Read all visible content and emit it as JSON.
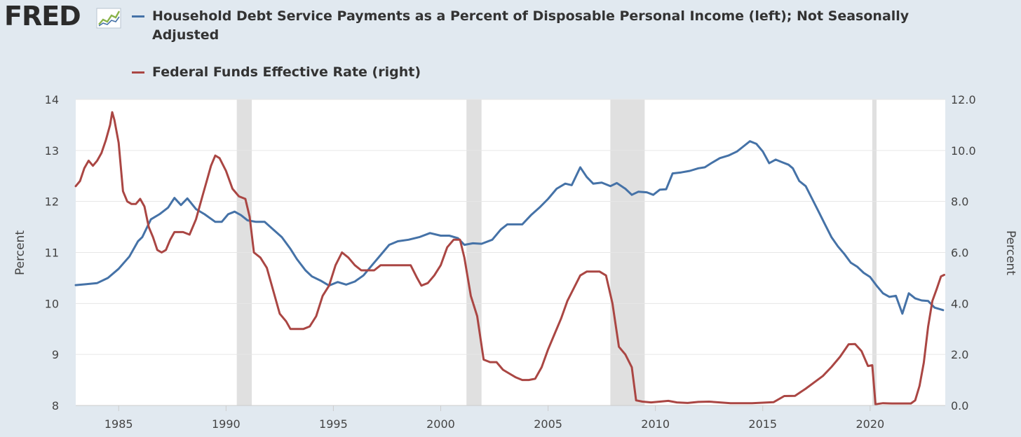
{
  "logo": {
    "text": "FRED"
  },
  "legend": [
    {
      "label": "Household Debt Service Payments as a Percent of Disposable Personal Income (left); Not Seasonally Adjusted",
      "color": "#4572a7"
    },
    {
      "label": "Federal Funds Effective Rate (right)",
      "color": "#aa4643"
    }
  ],
  "chart_data": {
    "type": "line",
    "xlim": [
      1983.0,
      2023.5
    ],
    "x_ticks": [
      "1985",
      "1990",
      "1995",
      "2000",
      "2005",
      "2010",
      "2015",
      "2020"
    ],
    "y_left": {
      "label": "Percent",
      "range": [
        8,
        14
      ],
      "ticks": [
        "8",
        "9",
        "10",
        "11",
        "12",
        "13",
        "14"
      ]
    },
    "y_right": {
      "label": "Percent",
      "range": [
        0,
        12
      ],
      "ticks": [
        "0.0",
        "2.0",
        "4.0",
        "6.0",
        "8.0",
        "10.0",
        "12.0"
      ]
    },
    "grid": true,
    "recessions": [
      [
        1990.5,
        1991.2
      ],
      [
        2001.2,
        2001.9
      ],
      [
        2007.9,
        2009.5
      ],
      [
        2020.1,
        2020.3
      ]
    ],
    "series": [
      {
        "axis": "left",
        "color": "#4572a7",
        "points": [
          [
            1983.0,
            10.36
          ],
          [
            1983.5,
            10.38
          ],
          [
            1984.0,
            10.4
          ],
          [
            1984.5,
            10.5
          ],
          [
            1985.0,
            10.68
          ],
          [
            1985.5,
            10.92
          ],
          [
            1985.9,
            11.22
          ],
          [
            1986.1,
            11.3
          ],
          [
            1986.5,
            11.65
          ],
          [
            1986.9,
            11.75
          ],
          [
            1987.3,
            11.88
          ],
          [
            1987.6,
            12.07
          ],
          [
            1987.9,
            11.93
          ],
          [
            1988.2,
            12.06
          ],
          [
            1988.6,
            11.85
          ],
          [
            1989.0,
            11.75
          ],
          [
            1989.5,
            11.6
          ],
          [
            1989.8,
            11.6
          ],
          [
            1990.1,
            11.75
          ],
          [
            1990.4,
            11.8
          ],
          [
            1990.7,
            11.73
          ],
          [
            1991.0,
            11.63
          ],
          [
            1991.4,
            11.6
          ],
          [
            1991.8,
            11.6
          ],
          [
            1992.2,
            11.45
          ],
          [
            1992.6,
            11.3
          ],
          [
            1993.0,
            11.07
          ],
          [
            1993.3,
            10.87
          ],
          [
            1993.7,
            10.65
          ],
          [
            1994.0,
            10.53
          ],
          [
            1994.4,
            10.45
          ],
          [
            1994.8,
            10.35
          ],
          [
            1995.2,
            10.42
          ],
          [
            1995.6,
            10.37
          ],
          [
            1996.0,
            10.43
          ],
          [
            1996.4,
            10.55
          ],
          [
            1996.8,
            10.75
          ],
          [
            1997.2,
            10.95
          ],
          [
            1997.6,
            11.15
          ],
          [
            1998.0,
            11.22
          ],
          [
            1998.5,
            11.25
          ],
          [
            1999.0,
            11.3
          ],
          [
            1999.5,
            11.38
          ],
          [
            2000.0,
            11.33
          ],
          [
            2000.4,
            11.33
          ],
          [
            2000.8,
            11.28
          ],
          [
            2001.1,
            11.15
          ],
          [
            2001.5,
            11.18
          ],
          [
            2001.9,
            11.17
          ],
          [
            2002.4,
            11.25
          ],
          [
            2002.8,
            11.45
          ],
          [
            2003.1,
            11.55
          ],
          [
            2003.5,
            11.55
          ],
          [
            2003.8,
            11.55
          ],
          [
            2004.2,
            11.73
          ],
          [
            2004.6,
            11.88
          ],
          [
            2005.0,
            12.05
          ],
          [
            2005.4,
            12.25
          ],
          [
            2005.8,
            12.35
          ],
          [
            2006.1,
            12.32
          ],
          [
            2006.5,
            12.67
          ],
          [
            2006.8,
            12.48
          ],
          [
            2007.1,
            12.35
          ],
          [
            2007.5,
            12.37
          ],
          [
            2007.9,
            12.3
          ],
          [
            2008.2,
            12.36
          ],
          [
            2008.6,
            12.25
          ],
          [
            2008.9,
            12.13
          ],
          [
            2009.2,
            12.19
          ],
          [
            2009.6,
            12.18
          ],
          [
            2009.9,
            12.13
          ],
          [
            2010.2,
            12.23
          ],
          [
            2010.5,
            12.24
          ],
          [
            2010.8,
            12.55
          ],
          [
            2011.2,
            12.57
          ],
          [
            2011.6,
            12.6
          ],
          [
            2012.0,
            12.65
          ],
          [
            2012.3,
            12.67
          ],
          [
            2012.6,
            12.75
          ],
          [
            2013.0,
            12.85
          ],
          [
            2013.4,
            12.9
          ],
          [
            2013.8,
            12.98
          ],
          [
            2014.1,
            13.08
          ],
          [
            2014.4,
            13.18
          ],
          [
            2014.7,
            13.13
          ],
          [
            2015.0,
            12.98
          ],
          [
            2015.3,
            12.75
          ],
          [
            2015.6,
            12.82
          ],
          [
            2015.9,
            12.77
          ],
          [
            2016.2,
            12.72
          ],
          [
            2016.4,
            12.65
          ],
          [
            2016.7,
            12.4
          ],
          [
            2017.0,
            12.3
          ],
          [
            2017.3,
            12.05
          ],
          [
            2017.6,
            11.8
          ],
          [
            2017.9,
            11.55
          ],
          [
            2018.2,
            11.3
          ],
          [
            2018.5,
            11.12
          ],
          [
            2018.8,
            10.97
          ],
          [
            2019.1,
            10.8
          ],
          [
            2019.4,
            10.72
          ],
          [
            2019.7,
            10.6
          ],
          [
            2020.0,
            10.52
          ],
          [
            2020.3,
            10.35
          ],
          [
            2020.6,
            10.2
          ],
          [
            2020.9,
            10.13
          ],
          [
            2021.2,
            10.15
          ],
          [
            2021.5,
            9.8
          ],
          [
            2021.8,
            10.2
          ],
          [
            2022.1,
            10.1
          ],
          [
            2022.4,
            10.06
          ],
          [
            2022.7,
            10.05
          ],
          [
            2023.0,
            9.92
          ],
          [
            2023.4,
            9.87
          ]
        ]
      },
      {
        "axis": "right",
        "color": "#aa4643",
        "points": [
          [
            1983.0,
            8.6
          ],
          [
            1983.2,
            8.8
          ],
          [
            1983.4,
            9.3
          ],
          [
            1983.6,
            9.6
          ],
          [
            1983.8,
            9.4
          ],
          [
            1984.0,
            9.6
          ],
          [
            1984.2,
            9.9
          ],
          [
            1984.4,
            10.4
          ],
          [
            1984.6,
            11.0
          ],
          [
            1984.7,
            11.5
          ],
          [
            1984.8,
            11.2
          ],
          [
            1985.0,
            10.3
          ],
          [
            1985.2,
            8.4
          ],
          [
            1985.4,
            8.0
          ],
          [
            1985.6,
            7.9
          ],
          [
            1985.8,
            7.9
          ],
          [
            1986.0,
            8.1
          ],
          [
            1986.2,
            7.8
          ],
          [
            1986.4,
            7.0
          ],
          [
            1986.6,
            6.6
          ],
          [
            1986.8,
            6.1
          ],
          [
            1987.0,
            6.0
          ],
          [
            1987.2,
            6.1
          ],
          [
            1987.4,
            6.5
          ],
          [
            1987.6,
            6.8
          ],
          [
            1987.8,
            6.8
          ],
          [
            1988.0,
            6.8
          ],
          [
            1988.3,
            6.7
          ],
          [
            1988.6,
            7.3
          ],
          [
            1988.9,
            8.2
          ],
          [
            1989.1,
            8.8
          ],
          [
            1989.3,
            9.4
          ],
          [
            1989.5,
            9.8
          ],
          [
            1989.7,
            9.7
          ],
          [
            1990.0,
            9.2
          ],
          [
            1990.3,
            8.5
          ],
          [
            1990.6,
            8.2
          ],
          [
            1990.9,
            8.1
          ],
          [
            1991.1,
            7.4
          ],
          [
            1991.3,
            6.0
          ],
          [
            1991.6,
            5.8
          ],
          [
            1991.9,
            5.4
          ],
          [
            1992.2,
            4.5
          ],
          [
            1992.5,
            3.6
          ],
          [
            1992.8,
            3.3
          ],
          [
            1993.0,
            3.0
          ],
          [
            1993.3,
            3.0
          ],
          [
            1993.6,
            3.0
          ],
          [
            1993.9,
            3.1
          ],
          [
            1994.2,
            3.5
          ],
          [
            1994.5,
            4.3
          ],
          [
            1994.8,
            4.7
          ],
          [
            1995.1,
            5.5
          ],
          [
            1995.4,
            6.0
          ],
          [
            1995.7,
            5.8
          ],
          [
            1996.0,
            5.5
          ],
          [
            1996.3,
            5.3
          ],
          [
            1996.6,
            5.3
          ],
          [
            1996.9,
            5.3
          ],
          [
            1997.2,
            5.5
          ],
          [
            1997.5,
            5.5
          ],
          [
            1997.8,
            5.5
          ],
          [
            1998.0,
            5.5
          ],
          [
            1998.3,
            5.5
          ],
          [
            1998.6,
            5.5
          ],
          [
            1998.9,
            5.0
          ],
          [
            1999.1,
            4.7
          ],
          [
            1999.4,
            4.8
          ],
          [
            1999.7,
            5.1
          ],
          [
            2000.0,
            5.5
          ],
          [
            2000.3,
            6.2
          ],
          [
            2000.6,
            6.5
          ],
          [
            2000.9,
            6.5
          ],
          [
            2001.1,
            5.8
          ],
          [
            2001.4,
            4.3
          ],
          [
            2001.7,
            3.5
          ],
          [
            2002.0,
            1.8
          ],
          [
            2002.3,
            1.7
          ],
          [
            2002.6,
            1.7
          ],
          [
            2002.9,
            1.4
          ],
          [
            2003.2,
            1.25
          ],
          [
            2003.5,
            1.1
          ],
          [
            2003.8,
            1.0
          ],
          [
            2004.1,
            1.0
          ],
          [
            2004.4,
            1.05
          ],
          [
            2004.7,
            1.5
          ],
          [
            2005.0,
            2.2
          ],
          [
            2005.3,
            2.8
          ],
          [
            2005.6,
            3.4
          ],
          [
            2005.9,
            4.1
          ],
          [
            2006.2,
            4.6
          ],
          [
            2006.5,
            5.1
          ],
          [
            2006.8,
            5.25
          ],
          [
            2007.1,
            5.25
          ],
          [
            2007.4,
            5.25
          ],
          [
            2007.7,
            5.1
          ],
          [
            2008.0,
            4.0
          ],
          [
            2008.3,
            2.3
          ],
          [
            2008.6,
            2.0
          ],
          [
            2008.9,
            1.5
          ],
          [
            2009.1,
            0.2
          ],
          [
            2009.4,
            0.15
          ],
          [
            2009.8,
            0.12
          ],
          [
            2010.2,
            0.15
          ],
          [
            2010.6,
            0.18
          ],
          [
            2011.0,
            0.12
          ],
          [
            2011.5,
            0.1
          ],
          [
            2012.0,
            0.14
          ],
          [
            2012.5,
            0.15
          ],
          [
            2013.0,
            0.12
          ],
          [
            2013.5,
            0.09
          ],
          [
            2014.0,
            0.09
          ],
          [
            2014.5,
            0.09
          ],
          [
            2015.0,
            0.11
          ],
          [
            2015.5,
            0.13
          ],
          [
            2016.0,
            0.37
          ],
          [
            2016.5,
            0.38
          ],
          [
            2017.0,
            0.66
          ],
          [
            2017.4,
            0.91
          ],
          [
            2017.8,
            1.16
          ],
          [
            2018.2,
            1.51
          ],
          [
            2018.6,
            1.91
          ],
          [
            2019.0,
            2.4
          ],
          [
            2019.3,
            2.41
          ],
          [
            2019.6,
            2.13
          ],
          [
            2019.9,
            1.55
          ],
          [
            2020.1,
            1.58
          ],
          [
            2020.25,
            0.05
          ],
          [
            2020.6,
            0.09
          ],
          [
            2021.0,
            0.08
          ],
          [
            2021.5,
            0.08
          ],
          [
            2021.9,
            0.08
          ],
          [
            2022.1,
            0.2
          ],
          [
            2022.3,
            0.77
          ],
          [
            2022.5,
            1.68
          ],
          [
            2022.7,
            3.08
          ],
          [
            2022.9,
            4.1
          ],
          [
            2023.1,
            4.57
          ],
          [
            2023.3,
            5.06
          ],
          [
            2023.45,
            5.12
          ]
        ]
      }
    ]
  }
}
